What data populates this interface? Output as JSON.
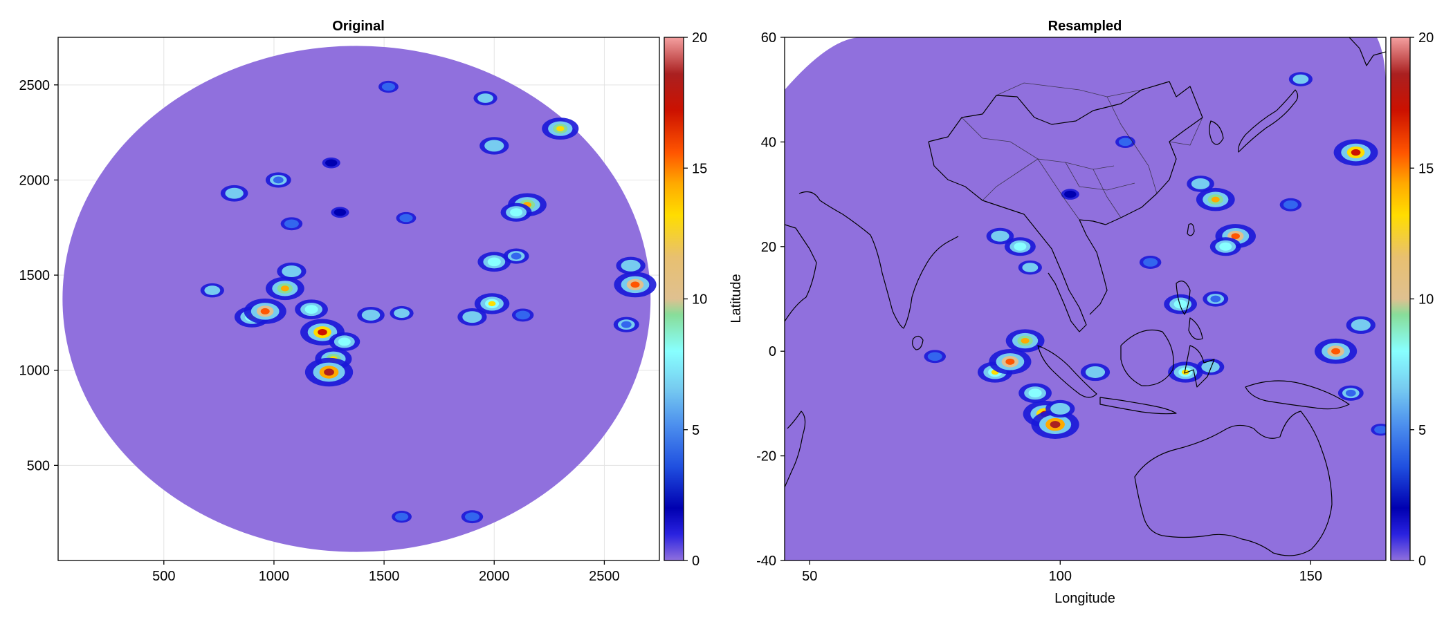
{
  "colors": {
    "background_field": "#9070dd",
    "colormap": [
      "#9070dd",
      "#2a22e0",
      "#0000b0",
      "#3366ee",
      "#77ccf0",
      "#88ffff",
      "#88dd99",
      "#dfc090",
      "#ffdd00",
      "#ffaa00",
      "#ff5500",
      "#cc1100",
      "#aa2020",
      "#f4a0a0"
    ]
  },
  "chart_data": [
    {
      "type": "heatmap",
      "title": "Original",
      "xlabel": "",
      "ylabel": "",
      "xlim": [
        20,
        2750
      ],
      "ylim": [
        0,
        2750
      ],
      "xticks": [
        500,
        1000,
        1500,
        2000,
        2500
      ],
      "yticks": [
        500,
        1000,
        1500,
        2000,
        2500
      ],
      "grid": true,
      "disk": {
        "cx": 1375,
        "cy": 1375,
        "rx": 1335,
        "ry": 1330
      },
      "colorbar": {
        "range": [
          0,
          20
        ],
        "ticks": [
          0,
          5,
          10,
          15,
          20
        ]
      },
      "cells": [
        {
          "x": 900,
          "y": 1280,
          "v": 12
        },
        {
          "x": 960,
          "y": 1310,
          "v": 16
        },
        {
          "x": 1050,
          "y": 1430,
          "v": 14
        },
        {
          "x": 1080,
          "y": 1520,
          "v": 9
        },
        {
          "x": 1170,
          "y": 1320,
          "v": 11
        },
        {
          "x": 1220,
          "y": 1200,
          "v": 17
        },
        {
          "x": 1270,
          "y": 1060,
          "v": 13
        },
        {
          "x": 1250,
          "y": 990,
          "v": 19
        },
        {
          "x": 1320,
          "y": 1150,
          "v": 10
        },
        {
          "x": 1440,
          "y": 1290,
          "v": 8
        },
        {
          "x": 1580,
          "y": 1300,
          "v": 6
        },
        {
          "x": 1900,
          "y": 1280,
          "v": 9
        },
        {
          "x": 1990,
          "y": 1350,
          "v": 12
        },
        {
          "x": 2130,
          "y": 1290,
          "v": 5
        },
        {
          "x": 2000,
          "y": 1570,
          "v": 11
        },
        {
          "x": 2100,
          "y": 1600,
          "v": 7
        },
        {
          "x": 2150,
          "y": 1870,
          "v": 14
        },
        {
          "x": 2100,
          "y": 1830,
          "v": 10
        },
        {
          "x": 2000,
          "y": 2180,
          "v": 9
        },
        {
          "x": 2300,
          "y": 2270,
          "v": 13
        },
        {
          "x": 1960,
          "y": 2430,
          "v": 6
        },
        {
          "x": 2640,
          "y": 1450,
          "v": 16
        },
        {
          "x": 2620,
          "y": 1550,
          "v": 9
        },
        {
          "x": 2600,
          "y": 1240,
          "v": 7
        },
        {
          "x": 1020,
          "y": 2000,
          "v": 7
        },
        {
          "x": 820,
          "y": 1930,
          "v": 8
        },
        {
          "x": 1080,
          "y": 1770,
          "v": 5
        },
        {
          "x": 1520,
          "y": 2490,
          "v": 4
        },
        {
          "x": 1900,
          "y": 230,
          "v": 5
        },
        {
          "x": 1580,
          "y": 230,
          "v": 4
        },
        {
          "x": 1300,
          "y": 1830,
          "v": 3
        },
        {
          "x": 1600,
          "y": 1800,
          "v": 4
        },
        {
          "x": 720,
          "y": 1420,
          "v": 6
        },
        {
          "x": 1260,
          "y": 2090,
          "v": 3
        }
      ]
    },
    {
      "type": "heatmap",
      "title": "Resampled",
      "xlabel": "Longitude",
      "ylabel": "Latitude",
      "xlim": [
        45,
        165
      ],
      "ylim": [
        -40,
        60
      ],
      "xticks": [
        50,
        100,
        150
      ],
      "yticks": [
        -40,
        -20,
        0,
        20,
        40,
        60
      ],
      "grid": false,
      "colorbar": {
        "range": [
          0,
          20
        ],
        "ticks": [
          0,
          5,
          10,
          15,
          20
        ]
      },
      "cells": [
        {
          "x": 87,
          "y": -4,
          "v": 12
        },
        {
          "x": 90,
          "y": -2,
          "v": 16
        },
        {
          "x": 93,
          "y": 2,
          "v": 14
        },
        {
          "x": 95,
          "y": -8,
          "v": 11
        },
        {
          "x": 97,
          "y": -12,
          "v": 17
        },
        {
          "x": 99,
          "y": -14,
          "v": 19
        },
        {
          "x": 100,
          "y": -11,
          "v": 9
        },
        {
          "x": 92,
          "y": 20,
          "v": 10
        },
        {
          "x": 88,
          "y": 22,
          "v": 8
        },
        {
          "x": 94,
          "y": 16,
          "v": 6
        },
        {
          "x": 107,
          "y": -4,
          "v": 9
        },
        {
          "x": 125,
          "y": -4,
          "v": 12
        },
        {
          "x": 130,
          "y": -3,
          "v": 8
        },
        {
          "x": 124,
          "y": 9,
          "v": 11
        },
        {
          "x": 131,
          "y": 10,
          "v": 7
        },
        {
          "x": 135,
          "y": 22,
          "v": 15
        },
        {
          "x": 133,
          "y": 20,
          "v": 10
        },
        {
          "x": 131,
          "y": 29,
          "v": 14
        },
        {
          "x": 128,
          "y": 32,
          "v": 8
        },
        {
          "x": 159,
          "y": 38,
          "v": 17
        },
        {
          "x": 148,
          "y": 52,
          "v": 6
        },
        {
          "x": 155,
          "y": 0,
          "v": 16
        },
        {
          "x": 160,
          "y": 5,
          "v": 9
        },
        {
          "x": 158,
          "y": -8,
          "v": 7
        },
        {
          "x": 75,
          "y": -1,
          "v": 5
        },
        {
          "x": 113,
          "y": 40,
          "v": 4
        },
        {
          "x": 118,
          "y": 17,
          "v": 5
        },
        {
          "x": 102,
          "y": 30,
          "v": 3
        },
        {
          "x": 146,
          "y": 28,
          "v": 5
        },
        {
          "x": 164,
          "y": -15,
          "v": 4
        }
      ]
    }
  ]
}
